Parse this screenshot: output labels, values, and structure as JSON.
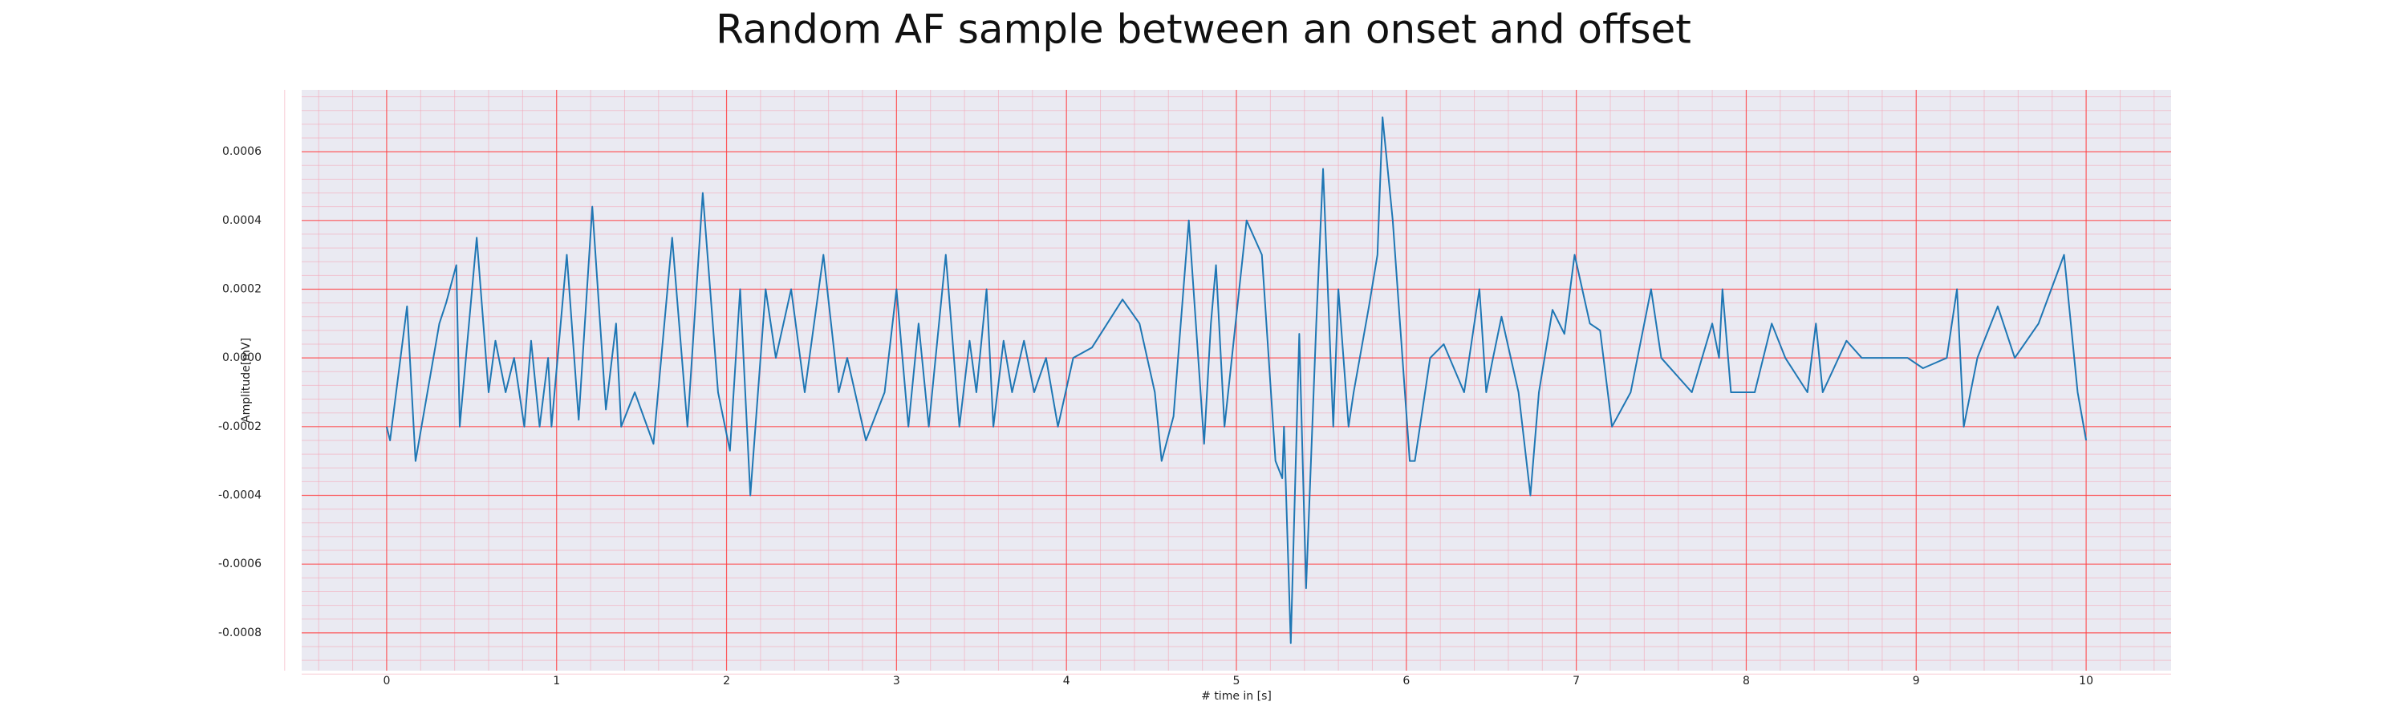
{
  "chart_data": {
    "type": "line",
    "title": "Random AF sample between an onset and offset",
    "x_label": "# time in [s]",
    "y_label": "Amplitude[mV]",
    "xlim": [
      -0.5,
      10.5
    ],
    "ylim": [
      -0.00091,
      0.00078
    ],
    "xticks": [
      0,
      1,
      2,
      3,
      4,
      5,
      6,
      7,
      8,
      9,
      10
    ],
    "yticks": [
      -0.0008,
      -0.0006,
      -0.0004,
      -0.0002,
      {
        "value": 0,
        "label": "0.0000"
      },
      0.0002,
      0.0004,
      0.0006
    ],
    "grid": true,
    "minor_grid": true,
    "x": [
      0,
      0.02,
      0.12,
      0.17,
      0.31,
      0.35,
      0.41,
      0.43,
      0.53,
      0.6,
      0.64,
      0.7,
      0.75,
      0.81,
      0.85,
      0.9,
      0.95,
      0.97,
      1.06,
      1.13,
      1.21,
      1.29,
      1.35,
      1.38,
      1.46,
      1.57,
      1.68,
      1.77,
      1.86,
      1.95,
      2.02,
      2.08,
      2.14,
      2.23,
      2.29,
      2.38,
      2.46,
      2.57,
      2.66,
      2.71,
      2.82,
      2.93,
      3.0,
      3.07,
      3.13,
      3.19,
      3.29,
      3.37,
      3.43,
      3.47,
      3.53,
      3.57,
      3.63,
      3.68,
      3.75,
      3.81,
      3.88,
      3.95,
      4.04,
      4.15,
      4.33,
      4.43,
      4.52,
      4.56,
      4.63,
      4.72,
      4.81,
      4.85,
      4.88,
      4.93,
      5.06,
      5.15,
      5.23,
      5.27,
      5.28,
      5.32,
      5.37,
      5.41,
      5.47,
      5.51,
      5.57,
      5.6,
      5.66,
      5.69,
      5.78,
      5.83,
      5.86,
      5.92,
      6.02,
      6.05,
      6.14,
      6.22,
      6.34,
      6.43,
      6.47,
      6.51,
      6.56,
      6.66,
      6.73,
      6.78,
      6.86,
      6.93,
      6.99,
      7.08,
      7.14,
      7.21,
      7.32,
      7.44,
      7.5,
      7.68,
      7.8,
      7.84,
      7.86,
      7.91,
      8.05,
      8.15,
      8.23,
      8.36,
      8.41,
      8.45,
      8.59,
      8.68,
      8.95,
      9.04,
      9.18,
      9.24,
      9.28,
      9.36,
      9.48,
      9.58,
      9.72,
      9.87,
      9.95,
      10.0
    ],
    "series": [
      {
        "color": "#1f77b4",
        "values": [
          -0.0002,
          -0.00024,
          0.00015,
          -0.0003,
          0.0001,
          0.00016,
          0.00027,
          -0.0002,
          0.00035,
          -0.0001,
          5e-05,
          -0.0001,
          0.0,
          -0.0002,
          5e-05,
          -0.0002,
          0.0,
          -0.0002,
          0.0003,
          -0.00018,
          0.00044,
          -0.00015,
          0.0001,
          -0.0002,
          -0.0001,
          -0.00025,
          0.00035,
          -0.0002,
          0.00048,
          -0.0001,
          -0.00027,
          0.0002,
          -0.0004,
          0.0002,
          0.0,
          0.0002,
          -0.0001,
          0.0003,
          -0.0001,
          0.0,
          -0.00024,
          -0.0001,
          0.0002,
          -0.0002,
          0.0001,
          -0.0002,
          0.0003,
          -0.0002,
          5e-05,
          -0.0001,
          0.0002,
          -0.0002,
          5e-05,
          -0.0001,
          5e-05,
          -0.0001,
          0.0,
          -0.0002,
          0.0,
          3e-05,
          0.00017,
          0.0001,
          -0.0001,
          -0.0003,
          -0.00017,
          0.0004,
          -0.00025,
          0.0001,
          0.00027,
          -0.0002,
          0.0004,
          0.0003,
          -0.0003,
          -0.00035,
          -0.0002,
          -0.00083,
          7e-05,
          -0.00067,
          0.0001,
          0.00055,
          -0.0002,
          0.0002,
          -0.0002,
          -0.0001,
          0.00015,
          0.0003,
          0.0007,
          0.0004,
          -0.0003,
          -0.0003,
          0.0,
          4e-05,
          -0.0001,
          0.0002,
          -0.0001,
          0.0,
          0.00012,
          -0.0001,
          -0.0004,
          -0.0001,
          0.00014,
          7e-05,
          0.0003,
          0.0001,
          8e-05,
          -0.0002,
          -0.0001,
          0.0002,
          0.0,
          -0.0001,
          0.0001,
          0.0,
          0.0002,
          -0.0001,
          -0.0001,
          0.0001,
          0.0,
          -0.0001,
          0.0001,
          -0.0001,
          5e-05,
          0.0,
          0.0,
          -3e-05,
          0.0,
          0.0002,
          -0.0002,
          0.0,
          0.00015,
          0.0,
          0.0001,
          0.0003,
          -0.0001,
          -0.00024
        ]
      }
    ]
  }
}
